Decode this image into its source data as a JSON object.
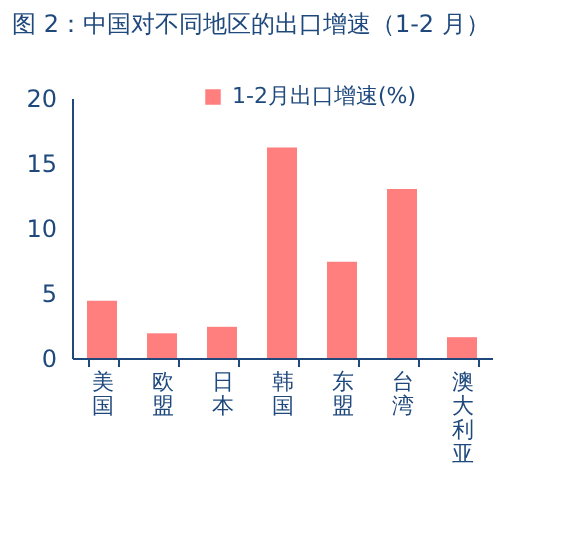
{
  "chart_data": {
    "type": "bar",
    "title": "图 2：中国对不同地区的出口增速（1-2 月）",
    "categories": [
      "美国",
      "欧盟",
      "日本",
      "韩国",
      "东盟",
      "台湾",
      "澳大利亚"
    ],
    "series": [
      {
        "name": "1-2月出口增速(%)",
        "color": "#ff7f7f",
        "values": [
          4.4,
          1.9,
          2.4,
          16.2,
          7.4,
          13.0,
          1.6
        ]
      }
    ],
    "ylim": [
      0,
      20
    ],
    "yticks": [
      0,
      5,
      10,
      15,
      20
    ],
    "grid": false,
    "legend": "top"
  }
}
